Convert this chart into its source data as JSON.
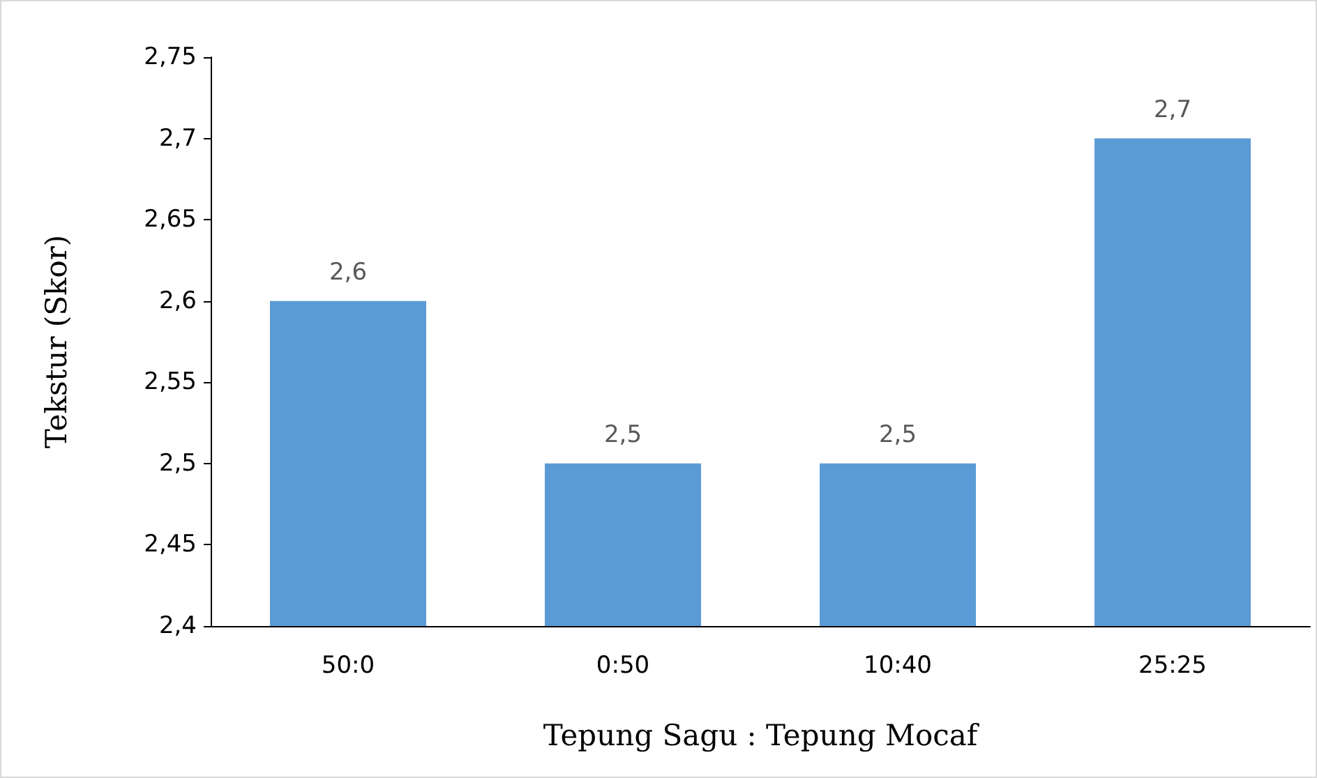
{
  "chart_data": {
    "type": "bar",
    "xlabel": "Tepung Sagu : Tepung Mocaf",
    "ylabel": "Tekstur (Skor)",
    "categories": [
      "50:0",
      "0:50",
      "10:40",
      "25:25"
    ],
    "values": [
      2.6,
      2.5,
      2.5,
      2.7
    ],
    "value_labels": [
      "2,6",
      "2,5",
      "2,5",
      "2,7"
    ],
    "color": "#5b9bd5",
    "ylim": [
      2.4,
      2.75
    ],
    "yticks": [
      {
        "value": 2.4,
        "label": "2,4"
      },
      {
        "value": 2.45,
        "label": "2,45"
      },
      {
        "value": 2.5,
        "label": "2,5"
      },
      {
        "value": 2.55,
        "label": "2,55"
      },
      {
        "value": 2.6,
        "label": "2,6"
      },
      {
        "value": 2.65,
        "label": "2,65"
      },
      {
        "value": 2.7,
        "label": "2,7"
      },
      {
        "value": 2.75,
        "label": "2,75"
      }
    ],
    "grid": false
  }
}
